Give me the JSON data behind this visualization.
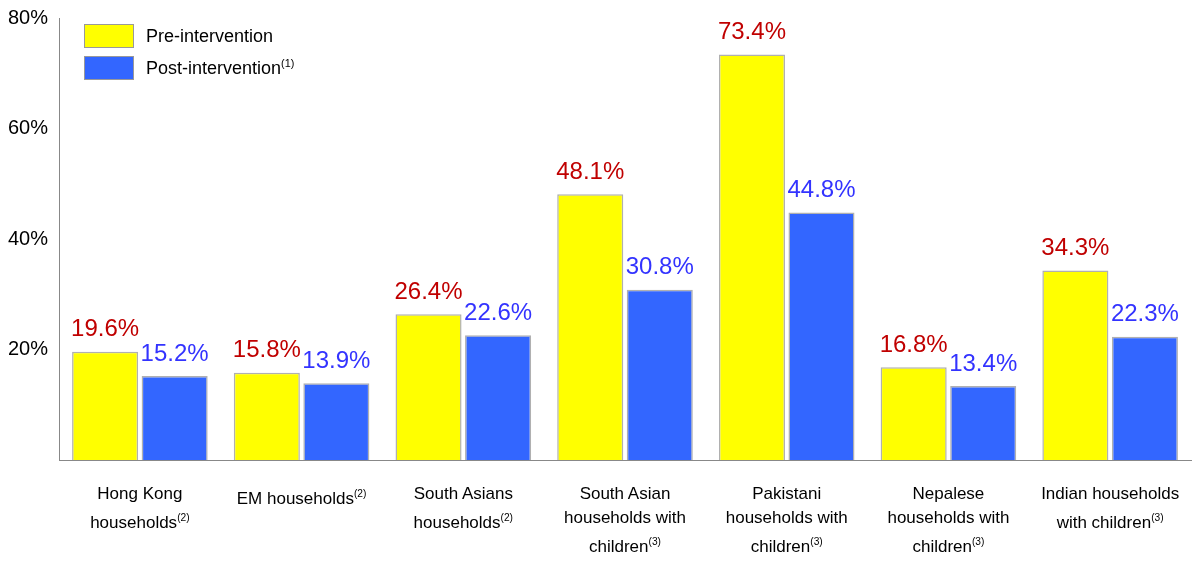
{
  "chart_data": {
    "type": "bar",
    "categories": [
      "Hong Kong households$^{(2)}$",
      "EM households$^{(2)}$",
      "South Asians households$^{(2)}$",
      "South Asian households with children$^{(3)}$",
      "Pakistani households with children$^{(3)}$",
      "Nepalese households with children$^{(3)}$",
      "Indian households with children$^{(3)}$"
    ],
    "series": [
      {
        "name": "Pre-intervention",
        "color": "#ffff00",
        "values": [
          19.6,
          15.8,
          26.4,
          48.1,
          73.4,
          16.8,
          34.3
        ],
        "value_labels": [
          "19.6%",
          "15.8%",
          "26.4%",
          "48.1%",
          "73.4%",
          "16.8%",
          "34.3%"
        ]
      },
      {
        "name": "Post-intervention$^{(1)}$",
        "color": "#3366ff",
        "values": [
          15.2,
          13.9,
          22.6,
          30.8,
          44.8,
          13.4,
          22.3
        ],
        "value_labels": [
          "15.2%",
          "13.9%",
          "22.6%",
          "30.8%",
          "44.8%",
          "13.4%",
          "22.3%"
        ]
      }
    ],
    "ylim": [
      0,
      80
    ],
    "yticks": [
      {
        "value": 0,
        "label": null
      },
      {
        "value": 20,
        "label": "20%"
      },
      {
        "value": 40,
        "label": "40%"
      },
      {
        "value": 60,
        "label": "60%"
      },
      {
        "value": 80,
        "label": "80%"
      }
    ],
    "grid": false,
    "legend": "top left"
  }
}
